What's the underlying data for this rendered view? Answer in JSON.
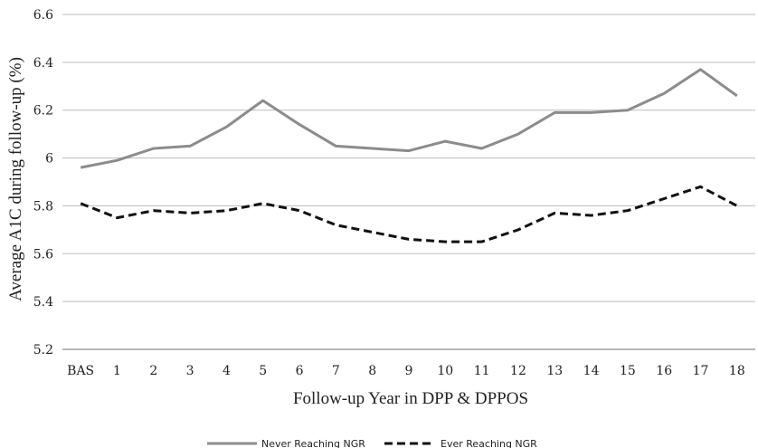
{
  "chart_data": {
    "type": "line",
    "xlabel": "Follow-up Year in DPP & DPPOS",
    "ylabel": "Average A1C during follow-up (%)",
    "categories": [
      "BAS",
      "1",
      "2",
      "3",
      "4",
      "5",
      "6",
      "7",
      "8",
      "9",
      "10",
      "11",
      "12",
      "13",
      "14",
      "15",
      "16",
      "17",
      "18"
    ],
    "ylim": [
      5.2,
      6.6
    ],
    "yticks": [
      "5.2",
      "5.4",
      "5.6",
      "5.8",
      "6",
      "6.2",
      "6.4",
      "6.6"
    ],
    "grid": true,
    "legend_position": "bottom",
    "series": [
      {
        "name": "Never Reaching NGR",
        "color": "#8c8c8c",
        "dash": "solid",
        "values": [
          5.96,
          5.99,
          6.04,
          6.05,
          6.13,
          6.24,
          6.14,
          6.05,
          6.04,
          6.03,
          6.07,
          6.04,
          6.1,
          6.19,
          6.19,
          6.2,
          6.27,
          6.37,
          6.26
        ]
      },
      {
        "name": "Ever Reaching NGR",
        "color": "#111111",
        "dash": "dashed",
        "values": [
          5.81,
          5.75,
          5.78,
          5.77,
          5.78,
          5.81,
          5.78,
          5.72,
          5.69,
          5.66,
          5.65,
          5.65,
          5.7,
          5.77,
          5.76,
          5.78,
          5.83,
          5.88,
          5.8
        ]
      }
    ]
  }
}
